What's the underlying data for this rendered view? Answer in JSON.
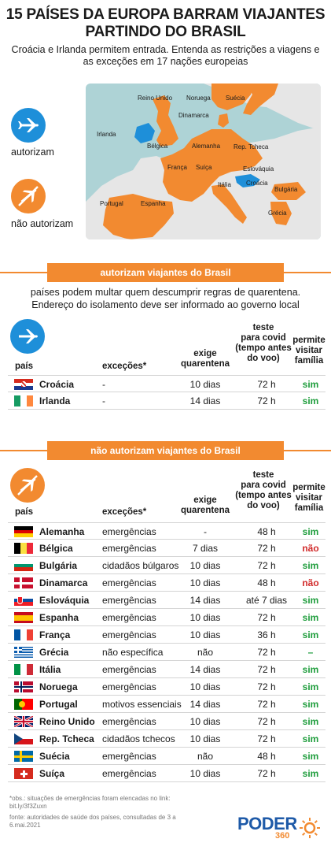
{
  "header": {
    "title_line1": "15 PAÍSES DA EUROPA BARRAM VIAJANTES",
    "title_line2": "PARTINDO DO BRASIL",
    "subtitle_line1": "Croácia e Irlanda permitem entrada. Entenda as restrições a viagens e",
    "subtitle_line2": "as exceções em 17 nações europeias"
  },
  "legend": {
    "allow": "autorizam",
    "deny": "não autorizam",
    "allow_icon": "airplane-icon",
    "deny_icon": "airplane-crossed-icon"
  },
  "map": {
    "labels": {
      "reino_unido": "Reino Unido",
      "noruega": "Noruega",
      "suecia": "Suécia",
      "dinamarca": "Dinamarca",
      "irlanda": "Irlanda",
      "belgica": "Bélgica",
      "alemanha": "Alemanha",
      "rep_tcheca": "Rep. Tcheca",
      "franca": "França",
      "suica": "Suíça",
      "eslovaquia": "Eslováquia",
      "italia": "Itália",
      "croacia": "Croácia",
      "portugal": "Portugal",
      "espanha": "Espanha",
      "bulgaria": "Bulgária",
      "grecia": "Grécia"
    }
  },
  "section_allow": {
    "banner": "autorizam viajantes do Brasil",
    "note_line1": "países podem multar quem descumprir regras de quarentena.",
    "note_line2": "Endereço do isolamento deve ser informado ao governo local"
  },
  "section_deny": {
    "banner": "não autorizam viajantes do Brasil"
  },
  "columns": {
    "country": "país",
    "exceptions": "exceções*",
    "quarantine_1": "exige",
    "quarantine_2": "quarentena",
    "test_1": "teste",
    "test_2": "para covid",
    "test_3": "(tempo antes",
    "test_4": "do voo)",
    "visit_1": "permite",
    "visit_2": "visitar",
    "visit_3": "família"
  },
  "allow_rows": [
    {
      "country": "Croácia",
      "exceptions": "-",
      "quarantine": "10 dias",
      "test": "72 h",
      "visit": "sim",
      "visit_class": "sim",
      "flag": "croatia-flag"
    },
    {
      "country": "Irlanda",
      "exceptions": "-",
      "quarantine": "14 dias",
      "test": "72 h",
      "visit": "sim",
      "visit_class": "sim",
      "flag": "ireland-flag"
    }
  ],
  "deny_rows": [
    {
      "country": "Alemanha",
      "exceptions": "emergências",
      "quarantine": "-",
      "test": "48 h",
      "visit": "sim",
      "visit_class": "sim",
      "flag": "germany-flag"
    },
    {
      "country": "Bélgica",
      "exceptions": "emergências",
      "quarantine": "7 dias",
      "test": "72 h",
      "visit": "não",
      "visit_class": "nao",
      "flag": "belgium-flag"
    },
    {
      "country": "Bulgária",
      "exceptions": "cidadãos búlgaros",
      "quarantine": "10 dias",
      "test": "72 h",
      "visit": "sim",
      "visit_class": "sim",
      "flag": "bulgaria-flag"
    },
    {
      "country": "Dinamarca",
      "exceptions": "emergências",
      "quarantine": "10 dias",
      "test": "48 h",
      "visit": "não",
      "visit_class": "nao",
      "flag": "denmark-flag"
    },
    {
      "country": "Eslováquia",
      "exceptions": "emergências",
      "quarantine": "14 dias",
      "test": "até 7 dias",
      "visit": "sim",
      "visit_class": "sim",
      "flag": "slovakia-flag"
    },
    {
      "country": "Espanha",
      "exceptions": "emergências",
      "quarantine": "10 dias",
      "test": "72 h",
      "visit": "sim",
      "visit_class": "sim",
      "flag": "spain-flag"
    },
    {
      "country": "França",
      "exceptions": "emergências",
      "quarantine": "10 dias",
      "test": "36 h",
      "visit": "sim",
      "visit_class": "sim",
      "flag": "france-flag"
    },
    {
      "country": "Grécia",
      "exceptions": "não específica",
      "quarantine": "não",
      "test": "72 h",
      "visit": "–",
      "visit_class": "dash",
      "flag": "greece-flag"
    },
    {
      "country": "Itália",
      "exceptions": "emergências",
      "quarantine": "14 dias",
      "test": "72 h",
      "visit": "sim",
      "visit_class": "sim",
      "flag": "italy-flag"
    },
    {
      "country": "Noruega",
      "exceptions": "emergências",
      "quarantine": "10 dias",
      "test": "72 h",
      "visit": "sim",
      "visit_class": "sim",
      "flag": "norway-flag"
    },
    {
      "country": "Portugal",
      "exceptions": "motivos essenciais",
      "quarantine": "14 dias",
      "test": "72 h",
      "visit": "sim",
      "visit_class": "sim",
      "flag": "portugal-flag"
    },
    {
      "country": "Reino Unido",
      "exceptions": "emergências",
      "quarantine": "10 dias",
      "test": "72 h",
      "visit": "sim",
      "visit_class": "sim",
      "flag": "uk-flag"
    },
    {
      "country": "Rep. Tcheca",
      "exceptions": "cidadãos tchecos",
      "quarantine": "10 dias",
      "test": "72 h",
      "visit": "sim",
      "visit_class": "sim",
      "flag": "czech-flag"
    },
    {
      "country": "Suécia",
      "exceptions": "emergências",
      "quarantine": "não",
      "test": "48 h",
      "visit": "sim",
      "visit_class": "sim",
      "flag": "sweden-flag"
    },
    {
      "country": "Suíça",
      "exceptions": "emergências",
      "quarantine": "10 dias",
      "test": "72 h",
      "visit": "sim",
      "visit_class": "sim",
      "flag": "switzerland-flag"
    }
  ],
  "footer": {
    "obs_line1": "*obs.: situações de emergências foram elencadas no link:",
    "obs_line2": "bit.ly/3f3Zuxn",
    "source_line1": "fonte: autoridades de saúde dos países, consultadas de 3 a",
    "source_line2": "6.mai.2021",
    "logo_word": "PODER",
    "logo_number": "360"
  },
  "colors": {
    "blue": "#1e8fd9",
    "orange": "#f28a30",
    "green": "#1e9d3c",
    "red": "#d12a2a"
  }
}
